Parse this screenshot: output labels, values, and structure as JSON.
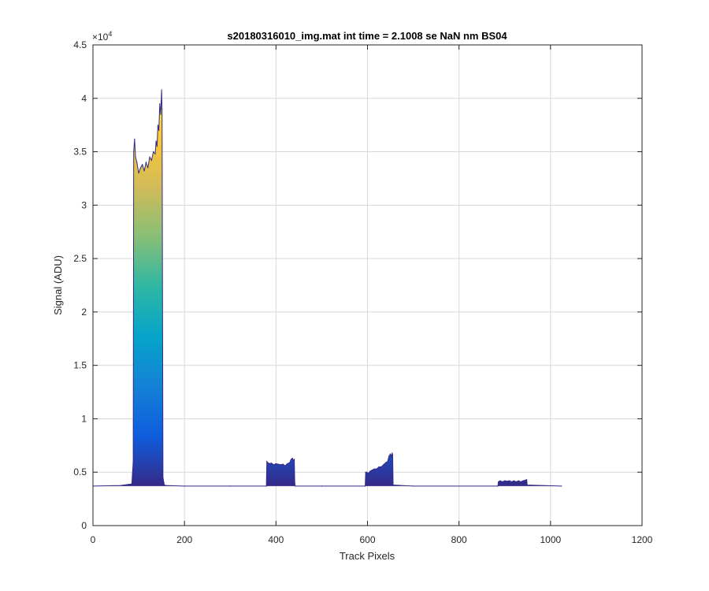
{
  "chart_data": {
    "type": "area",
    "title": "s20180316010_img.mat int time = 2.1008 se  NaN nm BS04",
    "xlabel": "Track Pixels",
    "ylabel": "Signal (ADU)",
    "y_exponent_label": "×10",
    "y_exponent_power": "4",
    "y_multiplier": 10000,
    "xlim": [
      0,
      1200
    ],
    "ylim": [
      0,
      4.5
    ],
    "x_ticks": [
      0,
      200,
      400,
      600,
      800,
      1000,
      1200
    ],
    "x_tick_labels": [
      "0",
      "200",
      "400",
      "600",
      "800",
      "1000",
      "1200"
    ],
    "y_ticks": [
      0,
      0.5,
      1,
      1.5,
      2,
      2.5,
      3,
      3.5,
      4,
      4.5
    ],
    "y_tick_labels": [
      "0",
      "0.5",
      "1",
      "1.5",
      "2",
      "2.5",
      "3",
      "3.5",
      "4",
      "4.5"
    ],
    "grid": true,
    "colormap": "parula",
    "colormap_stops": [
      "#352a87",
      "#0f5cdd",
      "#1481d6",
      "#06a4ca",
      "#2eb7a4",
      "#87bf77",
      "#d1bb59",
      "#fec832",
      "#f9fb0e"
    ],
    "baseline": 0.37,
    "x_end": 1024,
    "series": [
      {
        "x": [
          0,
          60,
          85,
          88,
          89,
          91,
          93,
          96,
          100,
          104,
          108,
          112,
          116,
          120,
          124,
          128,
          132,
          136,
          138,
          140,
          142,
          144,
          146,
          148,
          150,
          151,
          153,
          156,
          160,
          200,
          300,
          379,
          380,
          382,
          386,
          390,
          395,
          400,
          405,
          410,
          415,
          420,
          425,
          430,
          433,
          436,
          438,
          440,
          441,
          442,
          500,
          595,
          596,
          598,
          602,
          606,
          610,
          615,
          620,
          625,
          630,
          635,
          640,
          644,
          647,
          650,
          652,
          654,
          655,
          656,
          700,
          885,
          886,
          890,
          895,
          900,
          905,
          910,
          915,
          920,
          925,
          930,
          935,
          940,
          945,
          948,
          949,
          1024
        ],
        "y": [
          0.37,
          0.375,
          0.39,
          0.6,
          3.5,
          3.62,
          3.45,
          3.4,
          3.3,
          3.35,
          3.38,
          3.32,
          3.4,
          3.35,
          3.45,
          3.42,
          3.5,
          3.48,
          3.6,
          3.55,
          3.75,
          3.7,
          3.95,
          3.85,
          4.08,
          3.9,
          0.45,
          0.38,
          0.375,
          0.37,
          0.37,
          0.37,
          0.6,
          0.59,
          0.58,
          0.585,
          0.57,
          0.58,
          0.575,
          0.57,
          0.575,
          0.56,
          0.58,
          0.59,
          0.62,
          0.63,
          0.61,
          0.62,
          0.4,
          0.37,
          0.37,
          0.37,
          0.5,
          0.5,
          0.49,
          0.51,
          0.52,
          0.53,
          0.53,
          0.55,
          0.55,
          0.57,
          0.59,
          0.6,
          0.65,
          0.67,
          0.65,
          0.68,
          0.66,
          0.38,
          0.37,
          0.37,
          0.41,
          0.42,
          0.41,
          0.42,
          0.415,
          0.42,
          0.41,
          0.42,
          0.41,
          0.42,
          0.41,
          0.42,
          0.425,
          0.43,
          0.38,
          0.37
        ]
      }
    ]
  }
}
